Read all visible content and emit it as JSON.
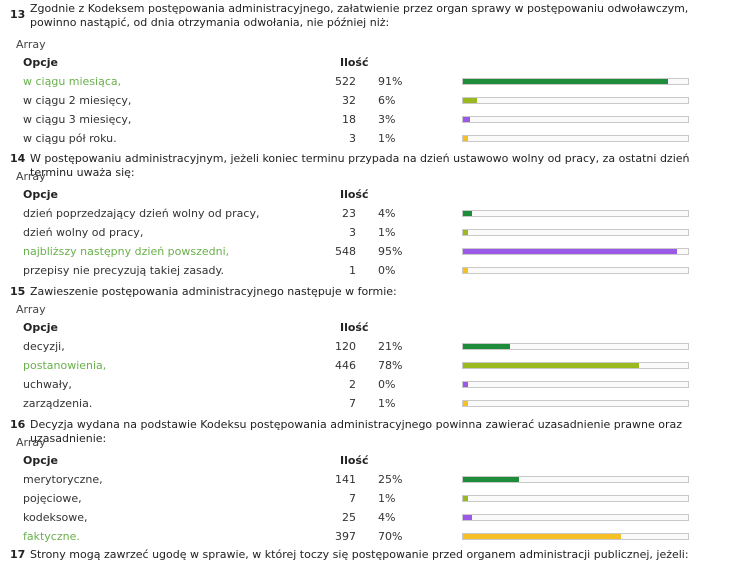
{
  "array_label": "Array",
  "headers": {
    "options": "Opcje",
    "count": "Ilość"
  },
  "bar_colors": [
    "#1e8c3a",
    "#9ab81f",
    "#9b59e8",
    "#f5c025"
  ],
  "correct_color": "#6ab04c",
  "questions": [
    {
      "number": "13",
      "text": "Zgodnie z Kodeksem postępowania administracyjnego, załatwienie przez organ sprawy w postępowaniu odwoławczym, powinno nastąpić, od dnia otrzymania odwołania, nie później niż:",
      "options": [
        {
          "label": "w ciągu miesiąca,",
          "count": "522",
          "percent": "91%",
          "fraction": 0.91,
          "correct": true
        },
        {
          "label": "w ciągu 2 miesięcy,",
          "count": "32",
          "percent": "6%",
          "fraction": 0.06,
          "correct": false
        },
        {
          "label": "w ciągu 3 miesięcy,",
          "count": "18",
          "percent": "3%",
          "fraction": 0.03,
          "correct": false
        },
        {
          "label": "w ciągu pół roku.",
          "count": "3",
          "percent": "1%",
          "fraction": 0.01,
          "correct": false
        }
      ]
    },
    {
      "number": "14",
      "text": "W postępowaniu administracyjnym, jeżeli koniec terminu przypada na dzień ustawowo wolny od pracy, za ostatni dzień terminu uważa się:",
      "options": [
        {
          "label": "dzień poprzedzający dzień wolny od pracy,",
          "count": "23",
          "percent": "4%",
          "fraction": 0.04,
          "correct": false
        },
        {
          "label": "dzień wolny od pracy,",
          "count": "3",
          "percent": "1%",
          "fraction": 0.01,
          "correct": false
        },
        {
          "label": "najbliższy następny dzień powszedni,",
          "count": "548",
          "percent": "95%",
          "fraction": 0.95,
          "correct": true
        },
        {
          "label": "przepisy nie precyzują takiej zasady.",
          "count": "1",
          "percent": "0%",
          "fraction": 0.0,
          "correct": false
        }
      ]
    },
    {
      "number": "15",
      "text": "Zawieszenie postępowania administracyjnego następuje w formie:",
      "options": [
        {
          "label": "decyzji,",
          "count": "120",
          "percent": "21%",
          "fraction": 0.21,
          "correct": false
        },
        {
          "label": "postanowienia,",
          "count": "446",
          "percent": "78%",
          "fraction": 0.78,
          "correct": true
        },
        {
          "label": "uchwały,",
          "count": "2",
          "percent": "0%",
          "fraction": 0.0,
          "correct": false
        },
        {
          "label": "zarządzenia.",
          "count": "7",
          "percent": "1%",
          "fraction": 0.01,
          "correct": false
        }
      ]
    },
    {
      "number": "16",
      "text": "Decyzja wydana na podstawie Kodeksu postępowania administracyjnego powinna zawierać uzasadnienie prawne oraz uzasadnienie:",
      "options": [
        {
          "label": "merytoryczne,",
          "count": "141",
          "percent": "25%",
          "fraction": 0.25,
          "correct": false
        },
        {
          "label": "pojęciowe,",
          "count": "7",
          "percent": "1%",
          "fraction": 0.01,
          "correct": false
        },
        {
          "label": "kodeksowe,",
          "count": "25",
          "percent": "4%",
          "fraction": 0.04,
          "correct": false
        },
        {
          "label": "faktyczne.",
          "count": "397",
          "percent": "70%",
          "fraction": 0.7,
          "correct": true
        }
      ]
    },
    {
      "number": "17",
      "text": "Strony mogą zawrzeć ugodę w sprawie, w której toczy się postępowanie przed organem administracji publicznej, jeżeli:",
      "options": []
    }
  ]
}
